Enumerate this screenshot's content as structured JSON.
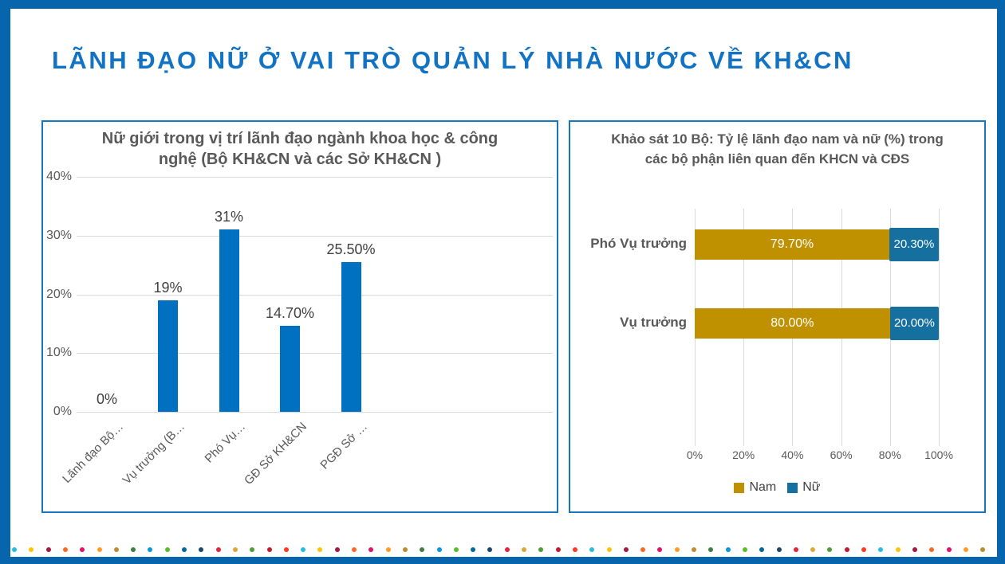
{
  "header": {
    "title": "LÃNH ĐẠO NỮ Ở VAI TRÒ QUẢN LÝ NHÀ NƯỚC VỀ KH&CN"
  },
  "colors": {
    "frame_blue": "#0665AD",
    "panel_border": "#1777BE",
    "title_blue": "#1273C4",
    "gridline": "#D9D9D9",
    "text_gray": "#595959"
  },
  "chart_data": [
    {
      "type": "bar",
      "title": "Nữ giới trong vị trí lãnh đạo ngành khoa học & công nghệ (Bộ KH&CN và các Sở KH&CN )",
      "categories": [
        "Lãnh đạo Bộ…",
        "Vụ trưởng (B…",
        "Phó Vụ…",
        "GĐ Sở KH&CN",
        "PGĐ Sở …"
      ],
      "values": [
        0,
        19,
        31,
        14.7,
        25.5
      ],
      "labels": [
        "0%",
        "19%",
        "31%",
        "14.70%",
        "25.50%"
      ],
      "ylim": [
        0,
        40
      ],
      "yticks": [
        "0%",
        "10%",
        "20%",
        "30%",
        "40%"
      ],
      "ytick_values": [
        0,
        10,
        20,
        30,
        40
      ],
      "grid": true,
      "legend_position": "none",
      "bar_color": "#0070C0"
    },
    {
      "type": "stacked-bar-horizontal",
      "title": "Khảo sát 10 Bộ: Tỷ lệ lãnh đạo nam và nữ (%) trong các bộ phận liên quan đến KHCN và CĐS",
      "categories": [
        "Phó Vụ trưởng",
        "Vụ trưởng"
      ],
      "series": [
        {
          "name": "Nam",
          "color": "#BF9000",
          "values": [
            79.7,
            80.0
          ],
          "labels": [
            "79.70%",
            "80.00%"
          ]
        },
        {
          "name": "Nữ",
          "color": "#15709F",
          "values": [
            20.3,
            20.0
          ],
          "labels": [
            "20.30%",
            "20.00%"
          ]
        }
      ],
      "xlim": [
        0,
        100
      ],
      "xticks": [
        "0%",
        "20%",
        "40%",
        "60%",
        "80%",
        "100%"
      ],
      "xtick_values": [
        0,
        20,
        40,
        60,
        80,
        100
      ],
      "grid": true,
      "legend_position": "bottom"
    }
  ],
  "footer": {
    "dot_count": 58,
    "dot_start_index": 5,
    "dot_colors": [
      "#E5243B",
      "#DDA63A",
      "#4C9F38",
      "#C5192D",
      "#FF3A21",
      "#26BDE2",
      "#FCC30B",
      "#A21942",
      "#FD6925",
      "#DD1367",
      "#FD9D24",
      "#BF8B2E",
      "#3F7E44",
      "#0A97D9",
      "#56C02B",
      "#00689D",
      "#19486A"
    ]
  }
}
